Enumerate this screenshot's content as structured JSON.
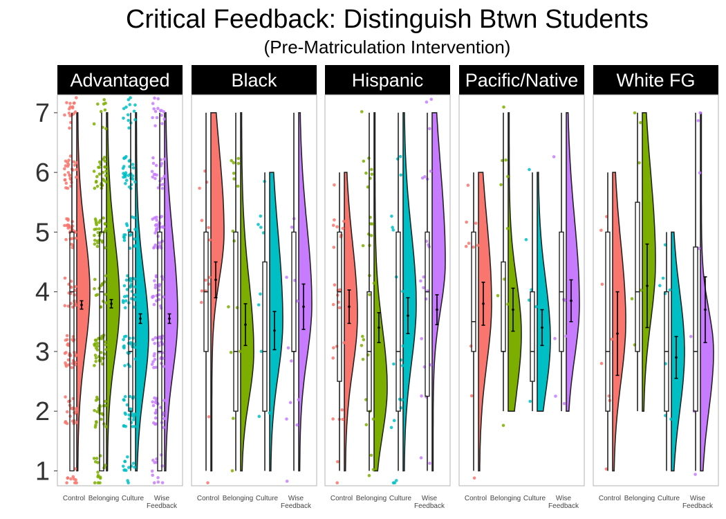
{
  "chart_data": {
    "type": "raincloud",
    "title": "Critical Feedback: Distinguish Btwn Students",
    "subtitle": "(Pre-Matriculation Intervention)",
    "panels": [
      "Advantaged",
      "Black",
      "Hispanic",
      "Pacific/Native",
      "White FG"
    ],
    "categories": [
      "Control",
      "Belonging",
      "Culture",
      "Wise Feedback"
    ],
    "category_tick_lines": [
      [
        "Control"
      ],
      [
        "Belonging"
      ],
      [
        "Culture"
      ],
      [
        "Wise",
        "Feedback"
      ]
    ],
    "colors": {
      "Control": "#f8766d",
      "Belonging": "#7cae00",
      "Culture": "#00bfc4",
      "Wise Feedback": "#c77cff"
    },
    "yticks": [
      1,
      2,
      3,
      4,
      5,
      6,
      7
    ],
    "ylim": [
      0.75,
      7.3
    ],
    "boxplots": {
      "Advantaged": [
        [
          1,
          1,
          4,
          5,
          7
        ],
        [
          1,
          1,
          4,
          5,
          7
        ],
        [
          1,
          2,
          3,
          5,
          7
        ],
        [
          1,
          1,
          3,
          5,
          7
        ]
      ],
      "Black": [
        [
          1,
          3,
          4,
          5,
          7
        ],
        [
          1,
          2,
          3,
          5,
          7
        ],
        [
          1,
          2,
          3,
          4.5,
          6
        ],
        [
          1,
          3,
          3,
          5,
          7
        ]
      ],
      "Hispanic": [
        [
          1,
          2.5,
          4,
          5,
          6
        ],
        [
          1,
          2,
          3,
          4,
          7
        ],
        [
          1,
          2,
          3,
          5,
          7
        ],
        [
          1,
          2.25,
          4,
          5,
          7
        ]
      ],
      "Pacific/Native": [
        [
          1,
          3,
          3.5,
          5,
          6
        ],
        [
          2,
          3,
          3,
          4.5,
          7
        ],
        [
          2,
          2.5,
          3,
          4,
          6
        ],
        [
          2,
          3,
          4,
          5,
          7
        ]
      ],
      "White FG": [
        [
          1,
          2,
          3,
          5,
          6
        ],
        [
          2,
          3,
          4,
          5.5,
          7
        ],
        [
          1,
          2,
          3,
          4,
          5
        ],
        [
          1,
          2,
          3,
          4.75,
          7
        ]
      ]
    },
    "means": {
      "Advantaged": [
        [
          3.78,
          0.07
        ],
        [
          3.8,
          0.07
        ],
        [
          3.55,
          0.08
        ],
        [
          3.55,
          0.08
        ]
      ],
      "Black": [
        [
          4.2,
          0.3
        ],
        [
          3.45,
          0.35
        ],
        [
          3.35,
          0.32
        ],
        [
          3.75,
          0.38
        ]
      ],
      "Hispanic": [
        [
          3.75,
          0.28
        ],
        [
          3.4,
          0.25
        ],
        [
          3.6,
          0.3
        ],
        [
          3.7,
          0.25
        ]
      ],
      "Pacific/Native": [
        [
          3.8,
          0.36
        ],
        [
          3.7,
          0.36
        ],
        [
          3.4,
          0.3
        ],
        [
          3.85,
          0.35
        ]
      ],
      "White FG": [
        [
          3.3,
          0.7
        ],
        [
          4.1,
          0.7
        ],
        [
          2.9,
          0.35
        ],
        [
          3.7,
          0.55
        ]
      ]
    },
    "density_range": {
      "Advantaged": [
        [
          1,
          7
        ],
        [
          1,
          7
        ],
        [
          1,
          7
        ],
        [
          1,
          7
        ]
      ],
      "Black": [
        [
          1,
          7
        ],
        [
          1,
          7
        ],
        [
          1,
          6
        ],
        [
          1,
          7
        ]
      ],
      "Hispanic": [
        [
          1,
          6
        ],
        [
          1,
          7
        ],
        [
          1,
          7
        ],
        [
          1,
          7
        ]
      ],
      "Pacific/Native": [
        [
          1,
          6
        ],
        [
          2,
          7
        ],
        [
          2,
          6
        ],
        [
          2,
          7
        ]
      ],
      "White FG": [
        [
          1,
          6
        ],
        [
          2,
          7
        ],
        [
          1,
          5
        ],
        [
          1,
          7
        ]
      ]
    },
    "density_peaks": {
      "Advantaged": [
        [
          4.0,
          1.0,
          1.0
        ],
        [
          3.8,
          0.9,
          1.1
        ],
        [
          3.3,
          0.95,
          1.0
        ],
        [
          3.6,
          0.95,
          1.3
        ]
      ],
      "Black": [
        [
          5.0,
          0.8,
          1.4
        ],
        [
          3.0,
          0.8,
          1.2
        ],
        [
          3.5,
          0.9,
          1.5
        ],
        [
          3.8,
          0.9,
          1.3
        ]
      ],
      "Hispanic": [
        [
          3.6,
          0.9,
          1.2
        ],
        [
          2.4,
          0.8,
          1.0
        ],
        [
          3.8,
          1.0,
          1.2
        ],
        [
          4.5,
          0.8,
          1.6
        ]
      ],
      "Pacific/Native": [
        [
          3.8,
          1.0,
          1.4
        ],
        [
          3.3,
          1.0,
          0.9
        ],
        [
          3.2,
          0.9,
          1.0
        ],
        [
          3.8,
          0.9,
          1.4
        ]
      ],
      "White FG": [
        [
          3.5,
          1.0,
          1.3
        ],
        [
          4.5,
          1.0,
          1.5
        ],
        [
          3.0,
          1.0,
          1.0
        ],
        [
          3.0,
          1.0,
          0.7
        ]
      ]
    },
    "point_counts": {
      "Advantaged": [
        150,
        150,
        150,
        150
      ],
      "Black": [
        14,
        15,
        10,
        12
      ],
      "Hispanic": [
        26,
        30,
        20,
        22
      ],
      "Pacific/Native": [
        10,
        10,
        6,
        7
      ],
      "White FG": [
        8,
        6,
        8,
        7
      ]
    },
    "xlabel": "",
    "ylabel": "",
    "legend": "none"
  }
}
